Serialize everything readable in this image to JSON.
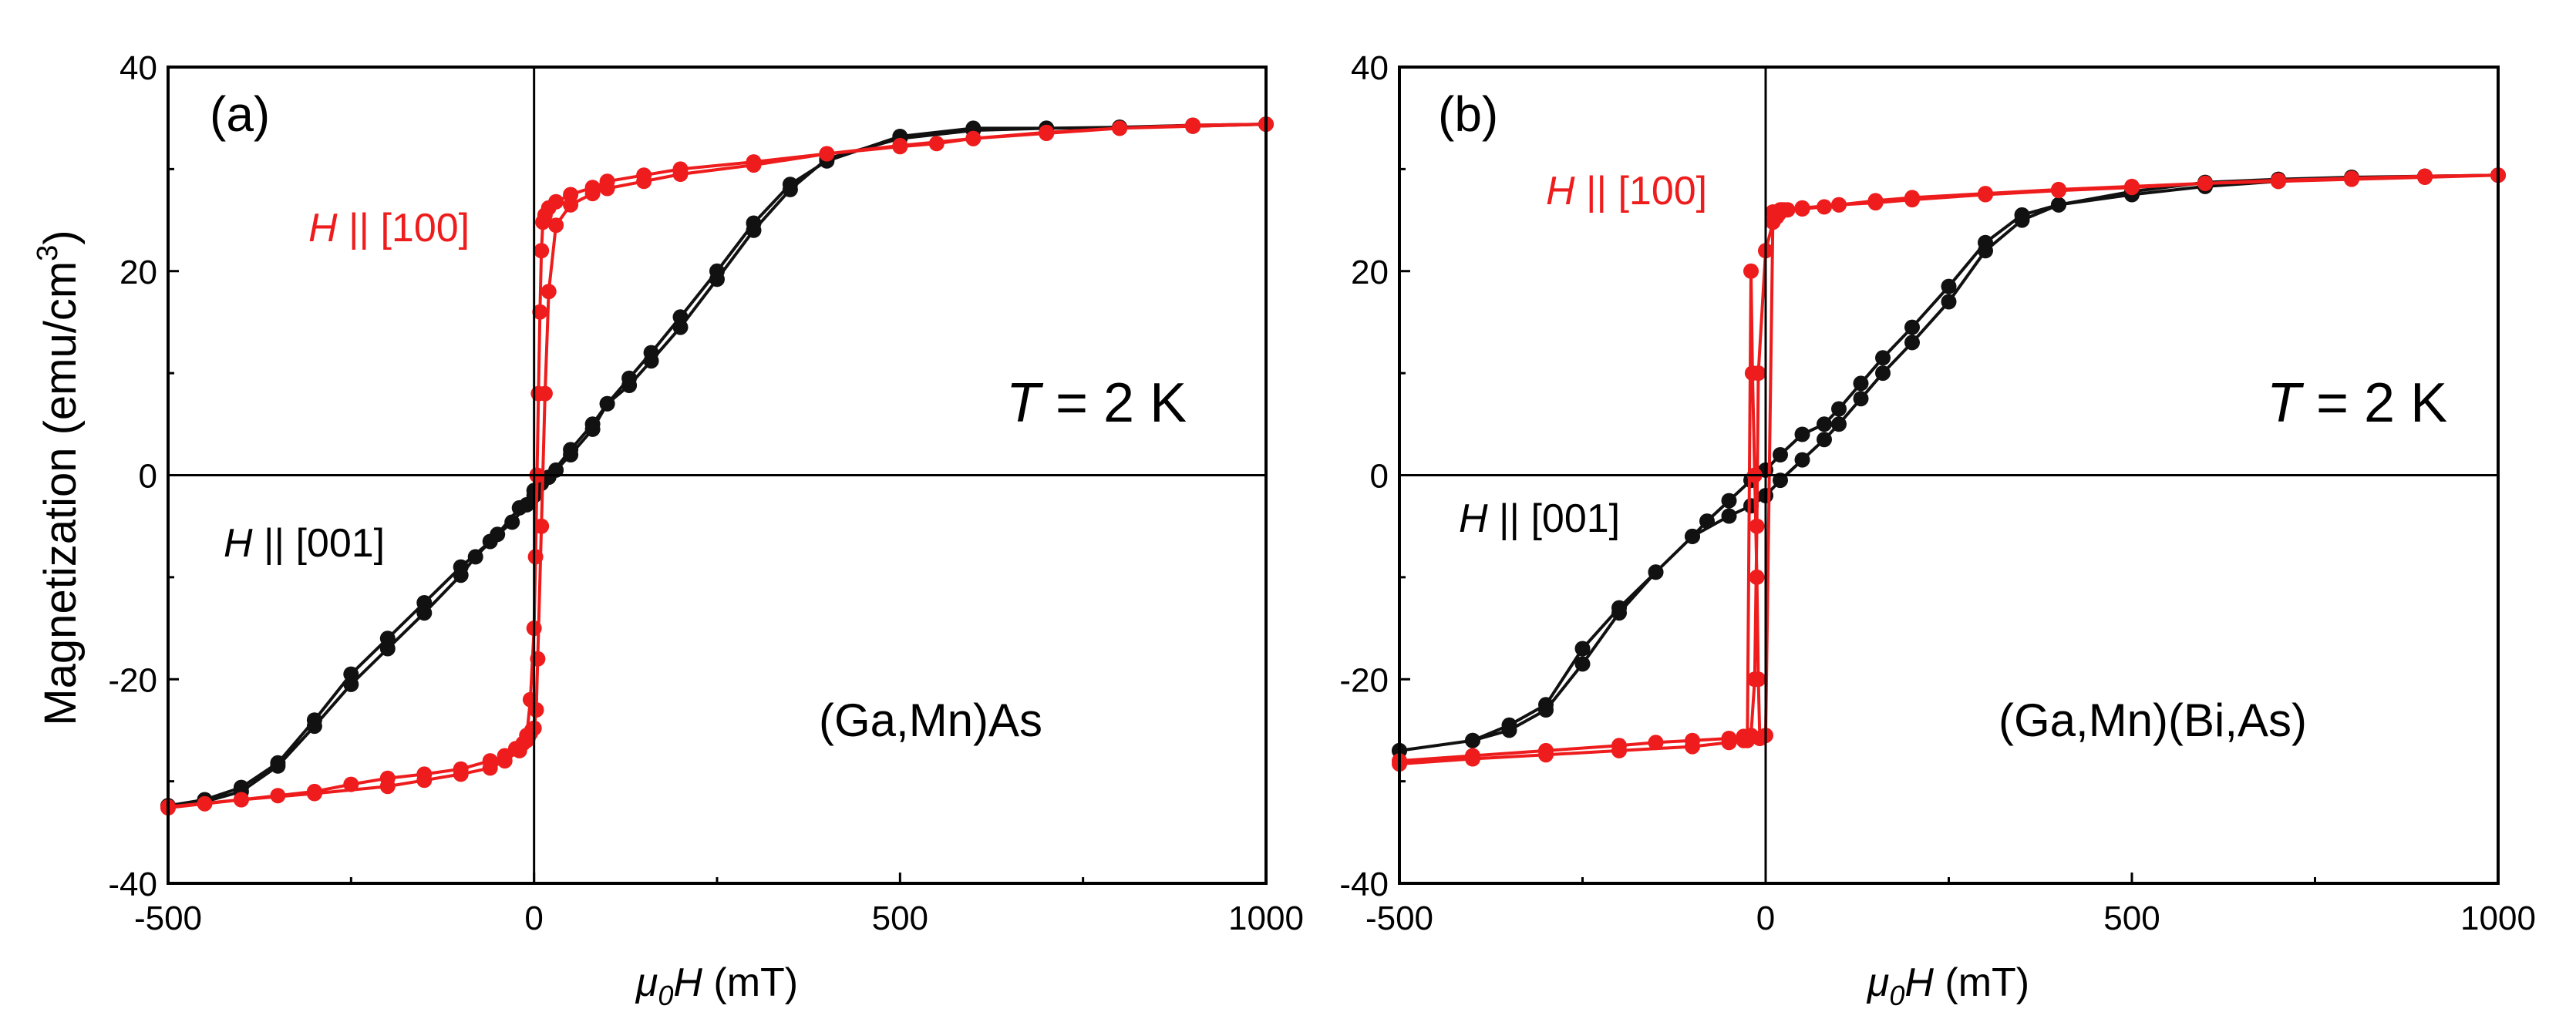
{
  "figure": {
    "ylabel": "Magnetization (emu/cm",
    "ylabel_sup": "3",
    "ylabel_close": ")"
  },
  "chart_data": [
    {
      "type": "scatter",
      "panel": "(a)",
      "xlabel_mu": "μ",
      "xlabel_sub": "0",
      "xlabel_H": "H",
      "xlabel_unit": " (mT)",
      "xlabel": "μ0H (mT)",
      "ylabel": "Magnetization (emu/cm3)",
      "xlim": [
        -500,
        1000
      ],
      "ylim": [
        -40,
        40
      ],
      "xticks": [
        -500,
        0,
        500,
        1000
      ],
      "yticks": [
        -40,
        -20,
        0,
        20,
        40
      ],
      "temperature_italic": "T",
      "temperature_text": " = 2 K",
      "sample": "(Ga,Mn)As",
      "label_100_italic": "H",
      "label_100_text": " || [100]",
      "label_001_italic": "H",
      "label_001_text": " || [001]",
      "colors": {
        "100": "#ee1c1c",
        "001": "#111111"
      },
      "series": [
        {
          "name": "H || [001]",
          "color": "#111111",
          "x": [
            -500,
            -450,
            -400,
            -350,
            -300,
            -250,
            -200,
            -150,
            -100,
            -60,
            -30,
            -10,
            0,
            20,
            50,
            80,
            100,
            130,
            160,
            200,
            250,
            300,
            350,
            400,
            500,
            600,
            700,
            800,
            900,
            1000,
            900,
            800,
            700,
            600,
            500,
            400,
            350,
            300,
            250,
            200,
            160,
            130,
            100,
            80,
            50,
            30,
            10,
            0,
            -20,
            -50,
            -80,
            -100,
            -150,
            -200,
            -250,
            -300,
            -350,
            -400,
            -450,
            -500
          ],
          "y": [
            -32.4,
            -31.8,
            -30.6,
            -28.2,
            -24.0,
            -19.5,
            -16.0,
            -12.5,
            -9.0,
            -6.5,
            -4.6,
            -2.9,
            -2.0,
            -0.2,
            2.5,
            5.0,
            7.0,
            9.5,
            12.0,
            15.5,
            20.0,
            24.7,
            28.5,
            30.8,
            33.2,
            34.0,
            34.0,
            34.1,
            34.2,
            34.4,
            34.3,
            34.1,
            34.0,
            33.8,
            33.0,
            31.0,
            28.0,
            24.0,
            19.2,
            14.5,
            11.2,
            8.8,
            7.0,
            4.5,
            2.0,
            0.5,
            -0.8,
            -1.5,
            -3.2,
            -5.8,
            -8.0,
            -9.8,
            -13.5,
            -17.0,
            -20.5,
            -24.6,
            -28.5,
            -31.0,
            -32.0,
            -32.4
          ]
        },
        {
          "name": "H || [100]",
          "color": "#ee1c1c",
          "x": [
            -500,
            -450,
            -400,
            -350,
            -300,
            -250,
            -200,
            -150,
            -100,
            -60,
            -40,
            -25,
            -15,
            -10,
            -8,
            -5,
            -3,
            0,
            3,
            5,
            10,
            15,
            20,
            30,
            50,
            80,
            100,
            150,
            200,
            300,
            400,
            500,
            600,
            700,
            800,
            900,
            1000,
            900,
            800,
            700,
            600,
            550,
            500,
            400,
            300,
            200,
            150,
            100,
            80,
            50,
            30,
            20,
            15,
            12,
            10,
            8,
            6,
            4,
            2,
            0,
            -5,
            -10,
            -20,
            -40,
            -60,
            -100,
            -150,
            -200,
            -300,
            -400,
            -500
          ],
          "y": [
            -32.6,
            -32.2,
            -31.8,
            -31.4,
            -31.0,
            -30.3,
            -29.7,
            -29.3,
            -28.8,
            -28.0,
            -27.5,
            -26.8,
            -26.3,
            -26.0,
            -25.7,
            -25.3,
            -25.0,
            -24.8,
            -23.0,
            -18.0,
            -5.0,
            8.0,
            18.0,
            24.5,
            26.5,
            27.6,
            28.1,
            28.8,
            29.5,
            30.4,
            31.5,
            32.3,
            33.0,
            33.5,
            34.0,
            34.2,
            34.4,
            34.3,
            34.0,
            33.6,
            33.0,
            32.5,
            32.2,
            31.5,
            30.7,
            30.0,
            29.4,
            28.8,
            28.2,
            27.5,
            26.8,
            26.2,
            25.5,
            24.8,
            22.0,
            16.0,
            8.0,
            0.0,
            -8.0,
            -15.0,
            -22.0,
            -25.5,
            -27.0,
            -28.0,
            -28.7,
            -29.3,
            -29.9,
            -30.5,
            -31.2,
            -31.8,
            -32.5
          ]
        }
      ]
    },
    {
      "type": "scatter",
      "panel": "(b)",
      "xlabel_mu": "μ",
      "xlabel_sub": "0",
      "xlabel_H": "H",
      "xlabel_unit": " (mT)",
      "xlabel": "μ0H (mT)",
      "ylabel": "Magnetization (emu/cm3)",
      "xlim": [
        -500,
        1000
      ],
      "ylim": [
        -40,
        40
      ],
      "xticks": [
        -500,
        0,
        500,
        1000
      ],
      "yticks": [
        -40,
        -20,
        0,
        20,
        40
      ],
      "temperature_italic": "T",
      "temperature_text": " = 2 K",
      "sample": "(Ga,Mn)(Bi,As)",
      "label_100_italic": "H",
      "label_100_text": " || [100]",
      "label_001_italic": "H",
      "label_001_text": " || [001]",
      "colors": {
        "100": "#ee1c1c",
        "001": "#111111"
      },
      "series": [
        {
          "name": "H || [001]",
          "color": "#111111",
          "x": [
            -500,
            -400,
            -350,
            -300,
            -250,
            -200,
            -150,
            -100,
            -50,
            -20,
            0,
            20,
            50,
            80,
            100,
            130,
            160,
            200,
            250,
            300,
            350,
            400,
            500,
            600,
            700,
            800,
            900,
            1000,
            900,
            800,
            700,
            600,
            500,
            400,
            350,
            300,
            250,
            200,
            160,
            130,
            100,
            80,
            50,
            20,
            0,
            -20,
            -50,
            -80,
            -100,
            -150,
            -200,
            -250,
            -300,
            -350,
            -400,
            -500
          ],
          "y": [
            -27.0,
            -26.0,
            -24.5,
            -22.5,
            -17.0,
            -13.0,
            -9.5,
            -6.0,
            -4.0,
            -3.0,
            -2.0,
            -0.5,
            1.5,
            3.5,
            5.0,
            7.5,
            10.0,
            13.0,
            17.0,
            22.0,
            25.0,
            26.5,
            27.5,
            28.3,
            28.8,
            29.1,
            29.3,
            29.4,
            29.3,
            29.2,
            29.0,
            28.7,
            27.8,
            26.5,
            25.5,
            22.8,
            18.5,
            14.5,
            11.5,
            9.0,
            6.5,
            5.0,
            4.0,
            2.0,
            0.5,
            -0.5,
            -2.5,
            -4.5,
            -6.0,
            -9.5,
            -13.5,
            -18.5,
            -23.0,
            -25.0,
            -26.0,
            -27.0
          ]
        },
        {
          "name": "H || [100]",
          "color": "#ee1c1c",
          "x": [
            -500,
            -400,
            -300,
            -200,
            -150,
            -100,
            -50,
            -30,
            -20,
            -15,
            -12,
            -10,
            0,
            10,
            15,
            18,
            20,
            22,
            25,
            30,
            50,
            80,
            100,
            150,
            200,
            300,
            400,
            500,
            600,
            700,
            800,
            900,
            1000,
            900,
            800,
            700,
            600,
            500,
            400,
            300,
            200,
            150,
            100,
            50,
            20,
            10,
            0,
            -5,
            -8,
            -10,
            -12,
            -15,
            -18,
            -20,
            -25,
            -30,
            -50,
            -100,
            -200,
            -300,
            -400,
            -500
          ],
          "y": [
            -28.0,
            -27.5,
            -27.0,
            -26.5,
            -26.2,
            -26.0,
            -25.8,
            -25.6,
            -25.5,
            -20.0,
            -5.0,
            10.0,
            22.0,
            24.8,
            25.3,
            25.6,
            25.8,
            26.0,
            26.0,
            26.0,
            26.1,
            26.3,
            26.5,
            26.9,
            27.2,
            27.6,
            28.0,
            28.3,
            28.6,
            28.8,
            29.0,
            29.2,
            29.4,
            29.3,
            29.1,
            28.9,
            28.6,
            28.2,
            27.9,
            27.5,
            27.0,
            26.7,
            26.5,
            26.2,
            26.0,
            25.8,
            -25.5,
            -25.7,
            -25.8,
            -20.0,
            -10.0,
            0.0,
            10.0,
            20.0,
            -26.0,
            -26.0,
            -26.2,
            -26.6,
            -27.0,
            -27.4,
            -27.8,
            -28.3
          ]
        }
      ]
    }
  ]
}
